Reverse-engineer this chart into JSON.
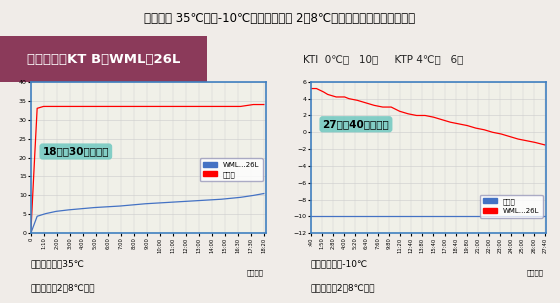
{
  "title": "「外気温 35℃及び-10℃を想定とした 2～8℃輸送」を目的とした使用例",
  "header_text": "ボックス：KT B－WML－26L",
  "header_sub": "KTI  0℃用   10個     KTP 4℃用   6個",
  "title_bg": "#ffffff",
  "title_color": "#000000",
  "header_bg": "#c8a0b0",
  "header_left_bg": "#8b3a5a",
  "chart_bg": "#f0f0e8",
  "chart_border": "#4080c0",
  "annotation_bg": "#70c8c0",
  "annotation_color": "#000000",
  "left_chart": {
    "annotation": "18時間30分を維持",
    "xlabel": "経過時間",
    "ylim": [
      0,
      40
    ],
    "yticks": [
      0,
      5,
      10,
      15,
      20,
      25,
      30,
      35,
      40
    ],
    "xticks": [
      "0",
      "1:10",
      "2:00",
      "3:00",
      "4:00",
      "5:00",
      "6:00",
      "7:00",
      "8:00",
      "9:00",
      "10:00",
      "11:00",
      "12:00",
      "13:00",
      "14:00",
      "15:00",
      "16:30",
      "17:30",
      "18:20"
    ],
    "legend1": "WML…26L",
    "legend2": "恒温室",
    "footer1": "外気温設定：35℃",
    "footer2": "維持温度：2～8℃以内",
    "wml_color": "#4472c4",
    "env_color": "#ff0000",
    "wml_data_x": [
      0,
      0.5,
      1.17,
      2.0,
      3.0,
      4.0,
      5.0,
      6.0,
      7.0,
      8.0,
      9.0,
      10.0,
      11.0,
      12.0,
      13.0,
      14.0,
      15.0,
      16.5,
      17.5,
      18.33
    ],
    "wml_data_y": [
      0,
      4.5,
      5.2,
      5.8,
      6.2,
      6.5,
      6.8,
      7.0,
      7.2,
      7.5,
      7.8,
      8.0,
      8.2,
      8.4,
      8.6,
      8.8,
      9.0,
      9.5,
      10.0,
      10.5
    ],
    "env_data_x": [
      0,
      0.3,
      0.5,
      1.0,
      2.0,
      3.0,
      4.0,
      5.0,
      6.0,
      7.0,
      8.0,
      9.0,
      10.0,
      11.0,
      12.0,
      13.0,
      14.0,
      15.0,
      16.5,
      17.5,
      18.33
    ],
    "env_data_y": [
      0,
      20,
      33.0,
      33.5,
      33.5,
      33.5,
      33.5,
      33.5,
      33.5,
      33.5,
      33.5,
      33.5,
      33.5,
      33.5,
      33.5,
      33.5,
      33.5,
      33.5,
      33.5,
      34.0,
      34.0
    ]
  },
  "right_chart": {
    "annotation": "27時間40分を維持",
    "xlabel": "経過時間",
    "ylim": [
      -12,
      6
    ],
    "yticks": [
      -12,
      -10,
      -8,
      -6,
      -4,
      -2,
      0,
      2,
      4,
      6
    ],
    "xticks": [
      ":40",
      "1:50",
      "2:80",
      "4:00",
      "5:20",
      "6:40",
      "7:60",
      "9:80",
      "11:20",
      "12:40",
      "13:80",
      "15:40",
      "17:00",
      "18:40",
      "19:80",
      "21:00",
      "22:00",
      "23:00",
      "24:00",
      "25:00",
      "26:00",
      "27:40"
    ],
    "legend1": "恒温室",
    "legend2": "WML…26L",
    "footer1": "外気温設定：-10℃",
    "footer2": "維持温度：2～8℃以内",
    "env_color": "#4472c4",
    "wml_color": "#ff0000",
    "env_data_x": [
      0,
      0.5,
      1.0,
      27.67
    ],
    "env_data_y": [
      -10,
      -10,
      -10,
      -10
    ],
    "wml_data_x": [
      0,
      0.67,
      1.5,
      2.0,
      3.0,
      4.0,
      4.5,
      5.5,
      6.5,
      7.5,
      8.5,
      9.5,
      10.5,
      11.5,
      12.5,
      13.5,
      14.5,
      15.5,
      16.5,
      17.5,
      18.5,
      19.5,
      20.5,
      21.5,
      22.5,
      23.5,
      24.5,
      25.5,
      26.5,
      27.67
    ],
    "wml_data_y": [
      5.2,
      5.2,
      4.8,
      4.5,
      4.2,
      4.2,
      4.0,
      3.8,
      3.5,
      3.2,
      3.0,
      3.0,
      2.5,
      2.2,
      2.0,
      2.0,
      1.8,
      1.5,
      1.2,
      1.0,
      0.8,
      0.5,
      0.3,
      0.0,
      -0.2,
      -0.5,
      -0.8,
      -1.0,
      -1.2,
      -1.5
    ]
  }
}
